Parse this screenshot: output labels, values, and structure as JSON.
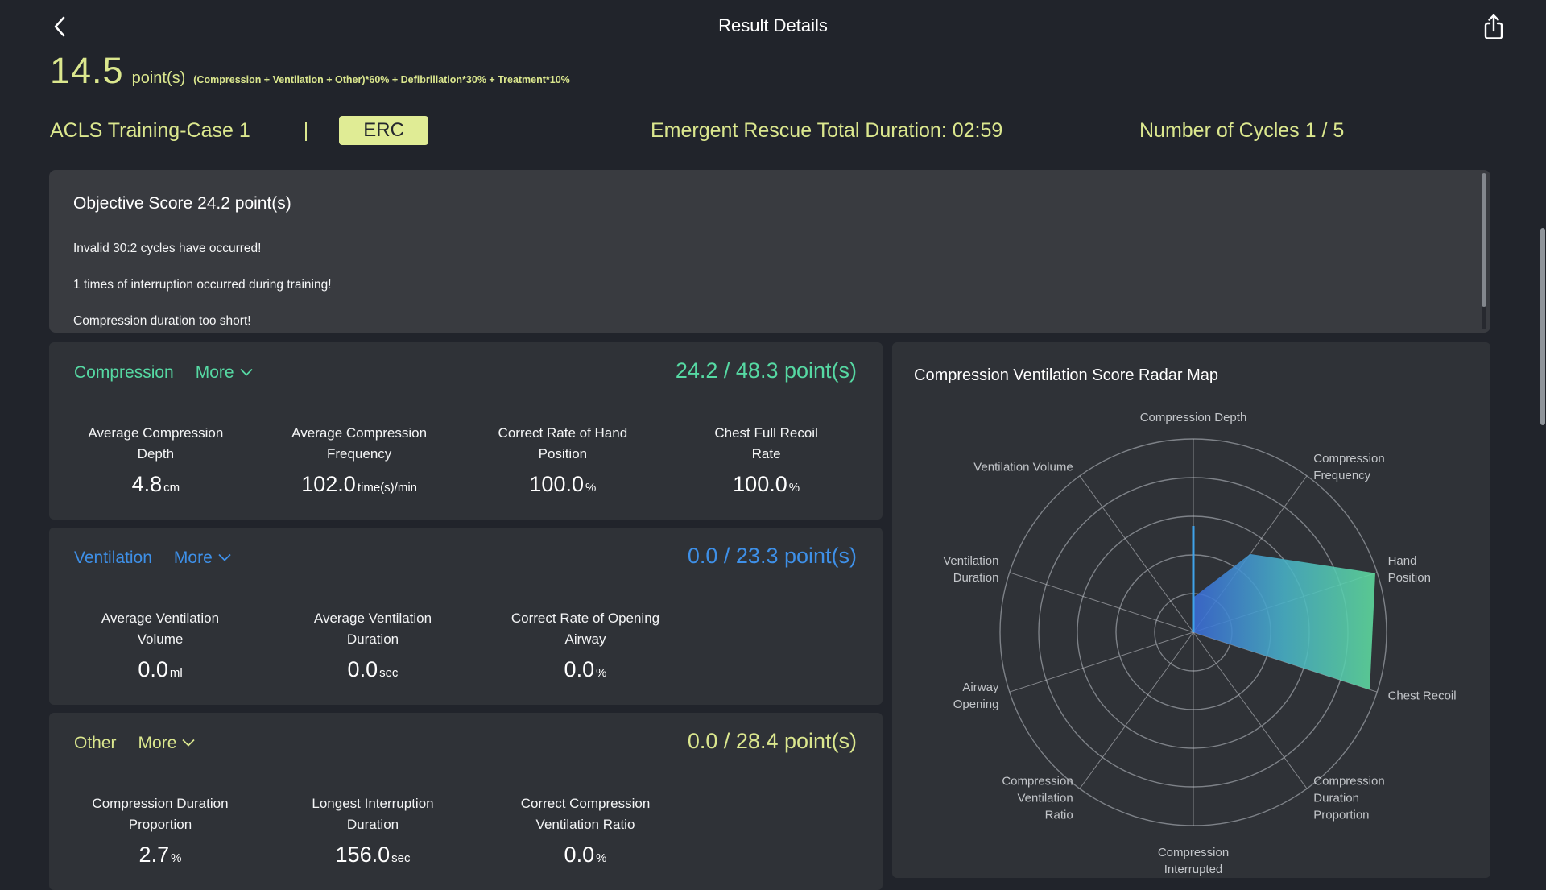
{
  "header": {
    "title": "Result Details"
  },
  "score": {
    "value": "14.5",
    "unit": "point(s)",
    "formula": "(Compression + Ventilation + Other)*60% + Defibrillation*30% + Treatment*10%"
  },
  "session": {
    "case_name": "ACLS Training-Case 1",
    "separator": "|",
    "standard_badge": "ERC",
    "total_duration": "Emergent Rescue Total Duration: 02:59",
    "cycles": "Number of Cycles 1 / 5"
  },
  "objective": {
    "title": "Objective Score 24.2 point(s)",
    "messages": [
      "Invalid 30:2 cycles have occurred!",
      "1 times of interruption occurred during training!",
      "Compression duration too short!"
    ]
  },
  "sections": [
    {
      "title": "Compression",
      "more_label": "More",
      "score": "24.2 / 48.3 point(s)",
      "accent": "#56d9a3",
      "metrics": [
        {
          "label": [
            "Average Compression",
            "Depth"
          ],
          "value": "4.8",
          "unit": "cm"
        },
        {
          "label": [
            "Average Compression",
            "Frequency"
          ],
          "value": "102.0",
          "unit": "time(s)/min"
        },
        {
          "label": [
            "Correct Rate of Hand",
            "Position"
          ],
          "value": "100.0",
          "unit": "%"
        },
        {
          "label": [
            "Chest Full Recoil",
            "Rate"
          ],
          "value": "100.0",
          "unit": "%"
        }
      ]
    },
    {
      "title": "Ventilation",
      "more_label": "More",
      "score": "0.0 / 23.3 point(s)",
      "accent": "#3e90e8",
      "metrics": [
        {
          "label": [
            "Average Ventilation",
            "Volume"
          ],
          "value": "0.0",
          "unit": "ml"
        },
        {
          "label": [
            "Average Ventilation",
            "Duration"
          ],
          "value": "0.0",
          "unit": "sec"
        },
        {
          "label": [
            "Correct Rate of Opening",
            "Airway"
          ],
          "value": "0.0",
          "unit": "%"
        }
      ]
    },
    {
      "title": "Other",
      "more_label": "More",
      "score": "0.0 / 28.4 point(s)",
      "accent": "#dbe78e",
      "metrics": [
        {
          "label": [
            "Compression Duration",
            "Proportion"
          ],
          "value": "2.7",
          "unit": "%"
        },
        {
          "label": [
            "Longest Interruption",
            "Duration"
          ],
          "value": "156.0",
          "unit": "sec"
        },
        {
          "label": [
            "Correct Compression",
            "Ventilation Ratio"
          ],
          "value": "0.0",
          "unit": "%"
        }
      ]
    }
  ],
  "radar": {
    "title": "Compression Ventilation Score Radar Map",
    "chart_data": {
      "type": "radar",
      "rings": 5,
      "max": 1,
      "indicators": [
        {
          "name": "Compression Depth",
          "lines": [
            "Compression Depth"
          ]
        },
        {
          "name": "Compression Frequency",
          "lines": [
            "Compression",
            "Frequency"
          ]
        },
        {
          "name": "Hand Position",
          "lines": [
            "Hand",
            "Position"
          ]
        },
        {
          "name": "Chest Recoil",
          "lines": [
            "Chest Recoil"
          ]
        },
        {
          "name": "Compression Duration Proportion",
          "lines": [
            "Compression",
            "Duration",
            "Proportion"
          ]
        },
        {
          "name": "Compression Interrupted",
          "lines": [
            "Compression",
            "Interrupted"
          ]
        },
        {
          "name": "Compression Ventilation Ratio",
          "lines": [
            "Compression",
            "Ventilation",
            "Ratio"
          ]
        },
        {
          "name": "Airway Opening",
          "lines": [
            "Airway",
            "Opening"
          ]
        },
        {
          "name": "Ventilation Duration",
          "lines": [
            "Ventilation",
            "Duration"
          ]
        },
        {
          "name": "Ventilation Volume",
          "lines": [
            "Ventilation Volume"
          ]
        }
      ],
      "series": [
        {
          "name": "score-area",
          "style": "gradient-area",
          "colors": [
            "#3a6bd8",
            "#48b2c8",
            "#5fdc9e"
          ],
          "values": [
            0.18,
            0.5,
            0.99,
            0.96,
            0,
            0,
            0,
            0,
            0,
            0
          ]
        },
        {
          "name": "compression-depth-spike",
          "style": "line",
          "color": "#3fa3ea",
          "values": [
            0.55,
            0,
            0,
            0,
            0,
            0,
            0,
            0,
            0,
            0
          ]
        }
      ],
      "grid_color": "#7e8288",
      "spoke_color": "#c8cbd0",
      "label_color": "#c3c6ca",
      "legend_position": "none"
    }
  }
}
